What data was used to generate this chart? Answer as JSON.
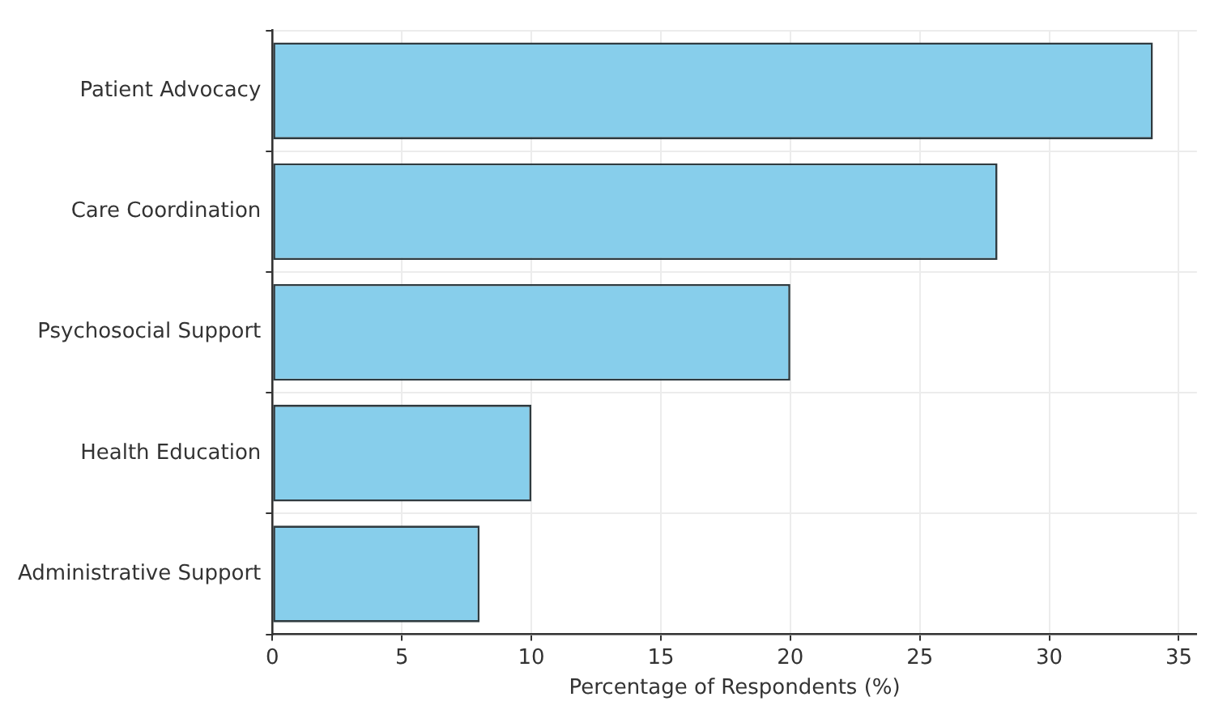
{
  "chart_data": {
    "type": "bar",
    "orientation": "horizontal",
    "xlabel": "Percentage of Respondents (%)",
    "categories": [
      "Patient Advocacy",
      "Care Coordination",
      "Psychosocial Support",
      "Health Education",
      "Administrative Support"
    ],
    "values": [
      34,
      28,
      20,
      10,
      8
    ],
    "color": "#87ceeb",
    "xlim": [
      0,
      35.7
    ],
    "xticks": [
      0,
      5,
      10,
      15,
      20,
      25,
      30,
      35
    ],
    "grid": true,
    "legend": false
  }
}
